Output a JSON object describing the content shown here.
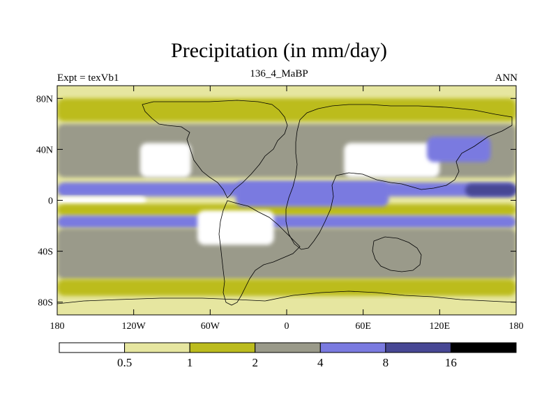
{
  "chart_data": {
    "type": "heatmap",
    "title": "Precipitation (in mm/day)",
    "left_label": "Expt = texVb1",
    "center_label": "136_4_MaBP",
    "right_label": "ANN",
    "x_ticks": [
      {
        "value": -180,
        "label": "180"
      },
      {
        "value": -120,
        "label": "120W"
      },
      {
        "value": -60,
        "label": "60W"
      },
      {
        "value": 0,
        "label": "0"
      },
      {
        "value": 60,
        "label": "60E"
      },
      {
        "value": 120,
        "label": "120E"
      },
      {
        "value": 180,
        "label": "180"
      }
    ],
    "y_ticks": [
      {
        "value": 80,
        "label": "80N"
      },
      {
        "value": 40,
        "label": "40N"
      },
      {
        "value": 0,
        "label": "0"
      },
      {
        "value": -40,
        "label": "40S"
      },
      {
        "value": -80,
        "label": "80S"
      }
    ],
    "xlim": [
      -180,
      180
    ],
    "ylim": [
      -90,
      90
    ],
    "levels": [
      {
        "label": "",
        "color": "#ffffff"
      },
      {
        "label": "0.5",
        "color": "#e6e6a0"
      },
      {
        "label": "1",
        "color": "#bcbc1e"
      },
      {
        "label": "2",
        "color": "#9a9a8a"
      },
      {
        "label": "4",
        "color": "#7a7ae0"
      },
      {
        "label": "8",
        "color": "#474794"
      },
      {
        "label": "16",
        "color": "#000000"
      }
    ],
    "regions": [
      {
        "level": 1,
        "lon": [
          -180,
          180
        ],
        "lat": [
          -90,
          90
        ],
        "feature": "background"
      },
      {
        "level": 2,
        "lon": [
          -180,
          180
        ],
        "lat": [
          62,
          80
        ],
        "feature": "northern band"
      },
      {
        "level": 3,
        "lon": [
          -180,
          180
        ],
        "lat": [
          18,
          60
        ],
        "feature": "northern subtropics"
      },
      {
        "level": 4,
        "lon": [
          -180,
          180
        ],
        "lat": [
          3,
          14
        ],
        "feature": "north ITCZ"
      },
      {
        "level": 5,
        "lon": [
          140,
          180
        ],
        "lat": [
          3,
          13
        ],
        "feature": "west Pacific"
      },
      {
        "level": 0,
        "lon": [
          -180,
          -110
        ],
        "lat": [
          -3,
          3
        ],
        "feature": "equatorial dry"
      },
      {
        "level": 2,
        "lon": [
          -180,
          180
        ],
        "lat": [
          -12,
          -3
        ],
        "feature": "south equatorial"
      },
      {
        "level": 4,
        "lon": [
          -180,
          180
        ],
        "lat": [
          -22,
          -12
        ],
        "feature": "south convergence"
      },
      {
        "level": 3,
        "lon": [
          -180,
          180
        ],
        "lat": [
          -62,
          -22
        ],
        "feature": "southern subtropics"
      },
      {
        "level": 2,
        "lon": [
          -180,
          180
        ],
        "lat": [
          -75,
          -62
        ],
        "feature": "southern band"
      },
      {
        "level": 0,
        "lon": [
          -115,
          -75
        ],
        "lat": [
          18,
          45
        ],
        "feature": "North America dry"
      },
      {
        "level": 0,
        "lon": [
          45,
          120
        ],
        "lat": [
          18,
          45
        ],
        "feature": "Asia dry"
      },
      {
        "level": 0,
        "lon": [
          -70,
          -10
        ],
        "lat": [
          -35,
          -8
        ],
        "feature": "South America dry"
      },
      {
        "level": 4,
        "lon": [
          -40,
          80
        ],
        "lat": [
          -5,
          15
        ],
        "feature": "tropical land"
      },
      {
        "level": 4,
        "lon": [
          110,
          160
        ],
        "lat": [
          30,
          50
        ],
        "feature": "NW Pacific storm"
      }
    ]
  }
}
